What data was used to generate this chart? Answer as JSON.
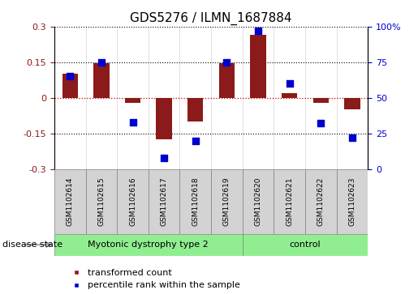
{
  "title": "GDS5276 / ILMN_1687884",
  "samples": [
    "GSM1102614",
    "GSM1102615",
    "GSM1102616",
    "GSM1102617",
    "GSM1102618",
    "GSM1102619",
    "GSM1102620",
    "GSM1102621",
    "GSM1102622",
    "GSM1102623"
  ],
  "red_values": [
    0.1,
    0.145,
    -0.02,
    -0.175,
    -0.1,
    0.145,
    0.265,
    0.02,
    -0.02,
    -0.05
  ],
  "blue_values": [
    65,
    75,
    33,
    8,
    20,
    75,
    97,
    60,
    32,
    22
  ],
  "groups": [
    {
      "label": "Myotonic dystrophy type 2",
      "start": 0,
      "end": 6,
      "color": "#90EE90"
    },
    {
      "label": "control",
      "start": 6,
      "end": 10,
      "color": "#90EE90"
    }
  ],
  "group_divider": 6,
  "ylim_left": [
    -0.3,
    0.3
  ],
  "ylim_right": [
    0,
    100
  ],
  "yticks_left": [
    -0.3,
    -0.15,
    0,
    0.15,
    0.3
  ],
  "yticks_right": [
    0,
    25,
    50,
    75,
    100
  ],
  "ytick_labels_right": [
    "0",
    "25",
    "50",
    "75",
    "100%"
  ],
  "red_color": "#8B1A1A",
  "blue_color": "#0000CD",
  "bar_width": 0.5,
  "dot_size": 35,
  "hline_color": "#CC0000",
  "grid_color": "black",
  "background_color": "white",
  "title_fontsize": 11,
  "tick_fontsize": 8,
  "legend_fontsize": 8,
  "label_fontsize": 8,
  "disease_state_label": "disease state",
  "legend_items": [
    "transformed count",
    "percentile rank within the sample"
  ],
  "sample_box_color": "#D3D3D3",
  "group1_label": "Myotonic dystrophy type 2",
  "group2_label": "control"
}
